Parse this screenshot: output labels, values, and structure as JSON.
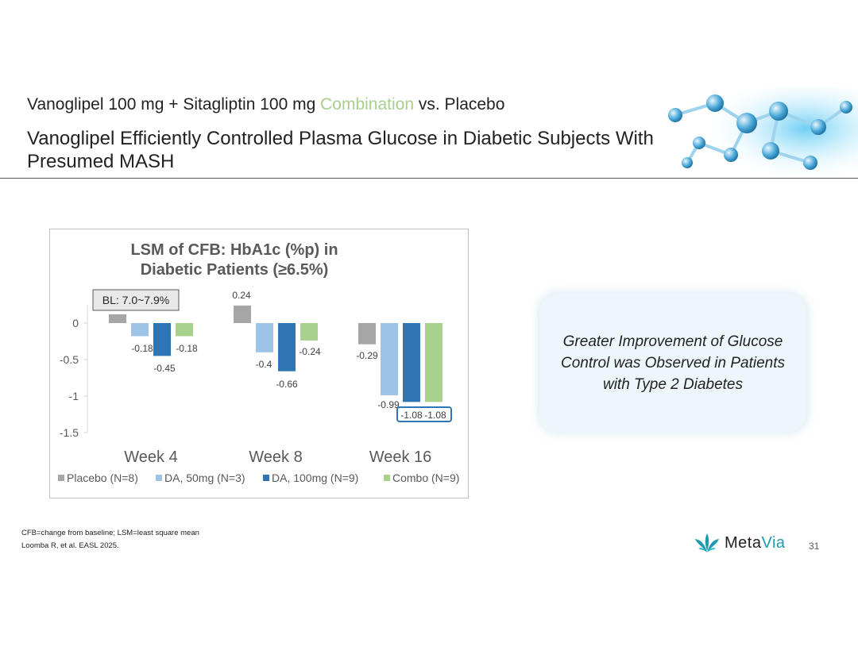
{
  "slide": {
    "subtitle_part1": "Vanoglipel 100 mg + Sitagliptin 100 mg ",
    "subtitle_highlight": "Combination",
    "subtitle_part2": " vs. Placebo",
    "title": "Vanoglipel Efficiently Controlled Plasma Glucose in Diabetic Subjects With Presumed MASH",
    "callout": "Greater Improvement of Glucose Control was Observed in Patients with Type 2 Diabetes",
    "footnote1": "CFB=change from baseline; LSM=least square mean",
    "footnote2": "Loomba R, et al. EASL 2025.",
    "logo_meta": "Meta",
    "logo_via": "Via",
    "page_number": "31"
  },
  "chart_data": {
    "type": "bar",
    "title_line1": "LSM of CFB: HbA1c (%p) in",
    "title_line2": "Diabetic Patients (≥6.5%)",
    "annotation": "BL: 7.0~7.9%",
    "categories": [
      "Week 4",
      "Week 8",
      "Week 16"
    ],
    "yticks": [
      "0",
      "-0.5",
      "-1",
      "-1.5"
    ],
    "ylim": [
      -1.5,
      0.25
    ],
    "series": [
      {
        "name": "Placebo (N=8)",
        "color": "#a6a6a6",
        "values": [
          0.12,
          0.24,
          -0.29
        ],
        "labels": [
          "",
          "0.24",
          "-0.29"
        ]
      },
      {
        "name": "DA, 50mg (N=3)",
        "color": "#9dc3e6",
        "values": [
          -0.18,
          -0.4,
          -0.99
        ],
        "labels": [
          "-0.18",
          "-0.4",
          "-0.99"
        ]
      },
      {
        "name": "DA, 100mg (N=9)",
        "color": "#2e75b6",
        "values": [
          -0.45,
          -0.66,
          -1.08
        ],
        "labels": [
          "-0.45",
          "-0.66",
          "-1.08"
        ]
      },
      {
        "name": "Combo (N=9)",
        "color": "#a9d18e",
        "values": [
          -0.18,
          -0.24,
          -1.08
        ],
        "labels": [
          "-0.18",
          "-0.24",
          "-1.08"
        ]
      }
    ]
  }
}
